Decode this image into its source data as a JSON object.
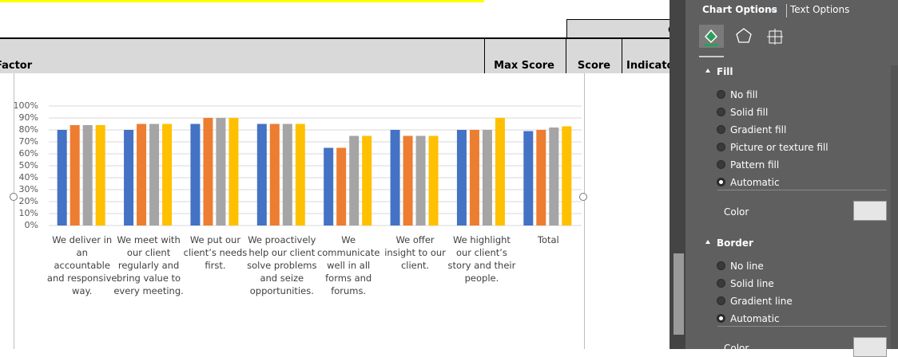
{
  "sheet": {
    "group_header": "C",
    "headers": [
      "Factor",
      "Max Score",
      "Score",
      "Indicato"
    ]
  },
  "chart_data": {
    "type": "bar",
    "categories": [
      "We deliver in an accountable and responsive way.",
      "We meet with our client regularly and bring value to every meeting.",
      "We put our client’s needs first.",
      "We proactively help our client solve problems and seize opportunities.",
      "We communicate well in all forms and forums.",
      "We offer insight to our client.",
      "We highlight our client’s story and their people.",
      "Total"
    ],
    "series": [
      {
        "color": "#4472c4",
        "values": [
          80,
          80,
          85,
          85,
          65,
          80,
          80,
          79
        ]
      },
      {
        "color": "#ed7d31",
        "values": [
          84,
          85,
          90,
          85,
          65,
          75,
          80,
          80
        ]
      },
      {
        "color": "#a5a5a5",
        "values": [
          84,
          85,
          90,
          85,
          75,
          75,
          80,
          82
        ]
      },
      {
        "color": "#ffc000",
        "values": [
          84,
          85,
          90,
          85,
          75,
          75,
          90,
          83
        ]
      }
    ],
    "ylim": [
      0,
      100
    ],
    "yticks": [
      {
        "value": 0,
        "label": "0%"
      },
      {
        "value": 10,
        "label": "10%"
      },
      {
        "value": 20,
        "label": "20%"
      },
      {
        "value": 30,
        "label": "30%"
      },
      {
        "value": 40,
        "label": "40%"
      },
      {
        "value": 50,
        "label": "50%"
      },
      {
        "value": 60,
        "label": "60%"
      },
      {
        "value": 70,
        "label": "70%"
      },
      {
        "value": 80,
        "label": "80%"
      },
      {
        "value": 90,
        "label": "90%"
      },
      {
        "value": 100,
        "label": "100%"
      }
    ],
    "grid": true
  },
  "pane": {
    "tabs": [
      "Chart Options",
      "Text Options"
    ],
    "sections": [
      {
        "title": "Fill",
        "options": [
          "No fill",
          "Solid fill",
          "Gradient fill",
          "Picture or texture fill",
          "Pattern fill",
          "Automatic"
        ],
        "selected": 5,
        "color_label": "Color"
      },
      {
        "title": "Border",
        "options": [
          "No line",
          "Solid line",
          "Gradient line",
          "Automatic"
        ],
        "selected": 3,
        "color_label": "Color"
      }
    ]
  }
}
